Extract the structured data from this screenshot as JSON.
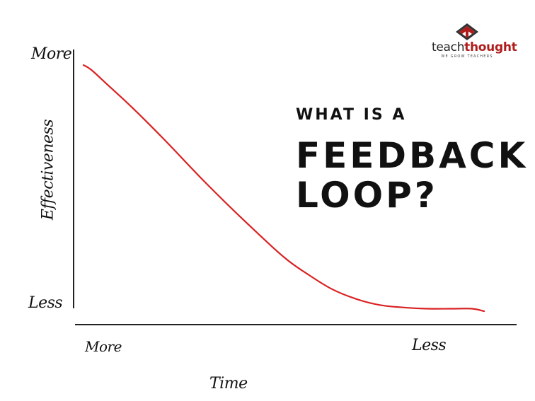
{
  "brand": {
    "name_part1": "teach",
    "name_part2": "thought",
    "tagline": "WE GROW TEACHERS",
    "primary_color": "#b01c1c",
    "secondary_color": "#333333"
  },
  "headline": {
    "line1": "WHAT IS A",
    "line2": "FEEDBACK",
    "line3": "LOOP?"
  },
  "chart_data": {
    "type": "line",
    "title": "",
    "xlabel": "Time",
    "ylabel": "Effectiveness",
    "x_tick_labels": {
      "start": "More",
      "end": "Less"
    },
    "y_tick_labels": {
      "top": "More",
      "bottom": "Less"
    },
    "xlim": [
      0,
      1
    ],
    "ylim": [
      0,
      1
    ],
    "grid": false,
    "line_color": "#d92222",
    "series": [
      {
        "x": [
          0.0,
          0.02,
          0.06,
          0.12,
          0.2,
          0.3,
          0.4,
          0.5,
          0.56,
          0.62,
          0.68,
          0.74,
          0.8,
          0.86,
          0.92,
          0.97,
          1.0
        ],
        "y": [
          1.0,
          0.98,
          0.92,
          0.83,
          0.7,
          0.53,
          0.37,
          0.22,
          0.15,
          0.09,
          0.05,
          0.025,
          0.015,
          0.01,
          0.01,
          0.01,
          0.0
        ]
      }
    ]
  }
}
